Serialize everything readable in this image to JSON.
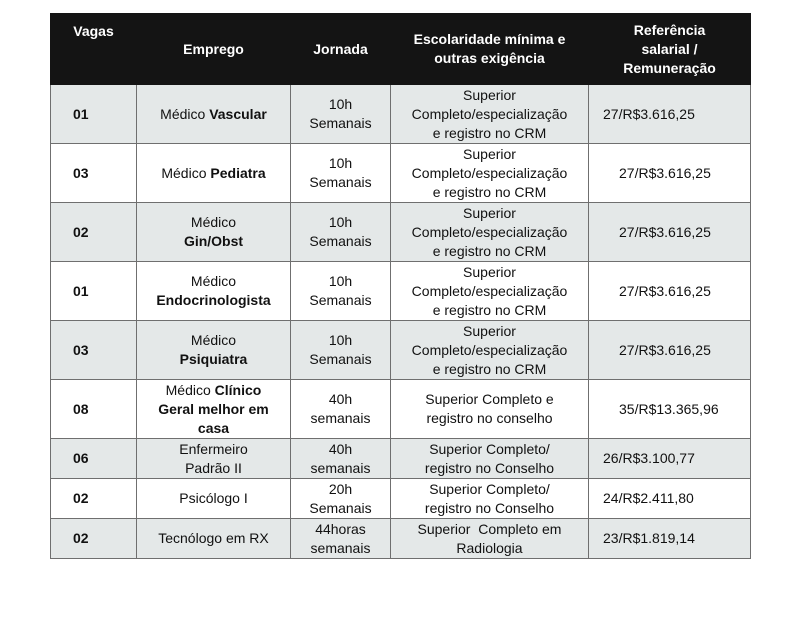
{
  "headers": {
    "vagas": "Vagas",
    "emprego": "Emprego",
    "jornada": "Jornada",
    "escolaridade_l1": "Escolaridade mínima e",
    "escolaridade_l2": "outras exigência",
    "referencia_l1": "Referência",
    "referencia_l2": "salarial /",
    "referencia_l3": "Remuneração"
  },
  "rows": [
    {
      "vagas": "01",
      "emprego_lines": [
        [
          "Médico ",
          "Vascular"
        ]
      ],
      "jornada_lines": [
        "10h",
        "Semanais"
      ],
      "escolaridade_lines": [
        "Superior",
        "Completo/especialização",
        "e registro no CRM"
      ],
      "referencia": "27/R$3.616,25"
    },
    {
      "vagas": "03",
      "emprego_lines": [
        [
          "Médico ",
          "Pediatra"
        ]
      ],
      "jornada_lines": [
        "10h",
        "Semanais"
      ],
      "escolaridade_lines": [
        "Superior",
        "Completo/especialização",
        "e registro no CRM"
      ],
      "referencia": "27/R$3.616,25"
    },
    {
      "vagas": "02",
      "emprego_lines": [
        [
          "Médico",
          ""
        ],
        [
          "",
          "Gin/Obst"
        ]
      ],
      "jornada_lines": [
        "10h",
        "Semanais"
      ],
      "escolaridade_lines": [
        "Superior",
        "Completo/especialização",
        "e registro no CRM"
      ],
      "referencia": "27/R$3.616,25"
    },
    {
      "vagas": "01",
      "emprego_lines": [
        [
          "Médico",
          ""
        ],
        [
          "",
          "Endocrinologista"
        ]
      ],
      "jornada_lines": [
        "10h",
        "Semanais"
      ],
      "escolaridade_lines": [
        "Superior",
        "Completo/especialização",
        "e registro no CRM"
      ],
      "referencia": "27/R$3.616,25"
    },
    {
      "vagas": "03",
      "emprego_lines": [
        [
          "Médico",
          ""
        ],
        [
          "",
          "Psiquiatra"
        ]
      ],
      "jornada_lines": [
        "10h",
        "Semanais"
      ],
      "escolaridade_lines": [
        "Superior",
        "Completo/especialização",
        "e registro no CRM"
      ],
      "referencia": "27/R$3.616,25"
    },
    {
      "vagas": "08",
      "emprego_lines": [
        [
          "Médico ",
          "Clínico"
        ],
        [
          "",
          "Geral melhor em"
        ],
        [
          "",
          "casa"
        ]
      ],
      "jornada_lines": [
        "40h",
        "semanais"
      ],
      "escolaridade_lines": [
        "Superior Completo e",
        "registro no conselho"
      ],
      "referencia": "35/R$13.365,96"
    },
    {
      "vagas": "06",
      "emprego_lines": [
        [
          "Enfermeiro",
          ""
        ],
        [
          "Padrão II",
          ""
        ]
      ],
      "jornada_lines": [
        "40h",
        "semanais"
      ],
      "escolaridade_lines": [
        "Superior Completo/",
        "registro no Conselho"
      ],
      "referencia": "26/R$3.100,77"
    },
    {
      "vagas": "02",
      "emprego_lines": [
        [
          "Psicólogo I",
          ""
        ]
      ],
      "jornada_lines": [
        "20h",
        "Semanais"
      ],
      "escolaridade_lines": [
        "Superior Completo/",
        "registro no Conselho"
      ],
      "referencia": "24/R$2.411,80"
    },
    {
      "vagas": "02",
      "emprego_lines": [
        [
          "Tecnólogo em RX",
          ""
        ]
      ],
      "jornada_lines": [
        "44horas",
        "semanais"
      ],
      "escolaridade_lines": [
        "Superior  Completo em",
        "Radiologia"
      ],
      "referencia": "23/R$1.819,14"
    }
  ]
}
